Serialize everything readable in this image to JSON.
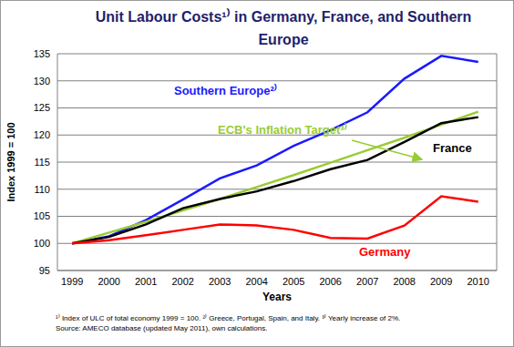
{
  "chart_data": {
    "type": "line",
    "title": "Unit Labour Costs¹⁾ in Germany, France, and Southern\nEurope",
    "x_label": "Years",
    "y_label": "Index 1999 = 100",
    "x": [
      1999,
      2000,
      2001,
      2002,
      2003,
      2004,
      2005,
      2006,
      2007,
      2008,
      2009,
      2010
    ],
    "xlim": [
      1998.6,
      2010.5
    ],
    "xticks": [
      1999,
      2000,
      2001,
      2002,
      2003,
      2004,
      2005,
      2006,
      2007,
      2008,
      2009,
      2010
    ],
    "ylim": [
      95,
      135
    ],
    "yticks": [
      95,
      100,
      105,
      110,
      115,
      120,
      125,
      130,
      135
    ],
    "grid": true,
    "series": [
      {
        "name": "Southern Europe²⁾",
        "color": "#1a1aff",
        "values": [
          100,
          101.3,
          104.3,
          108.1,
          112,
          114.4,
          118,
          120.9,
          124.2,
          130.4,
          134.6,
          133.5
        ]
      },
      {
        "name": "ECB's Inflation Target³⁾",
        "color": "#99cc33",
        "values": [
          100,
          102,
          104,
          106.1,
          108.2,
          110.4,
          112.6,
          114.9,
          117.2,
          119.5,
          121.9,
          124.3
        ]
      },
      {
        "name": "France",
        "color": "#000000",
        "values": [
          100,
          101.2,
          103.5,
          106.5,
          108.2,
          109.6,
          111.5,
          113.7,
          115.4,
          118.7,
          122.2,
          123.3
        ]
      },
      {
        "name": "Germany",
        "color": "#ff0000",
        "values": [
          100,
          100.6,
          101.5,
          102.5,
          103.5,
          103.3,
          102.5,
          101,
          100.9,
          103.3,
          108.7,
          107.7
        ]
      }
    ],
    "footnotes": [
      "¹⁾ Index of ULC of total economy 1999 = 100. ²⁾ Greece, Portugal, Spain, and Italy. ³⁾ Yearly increase of 2%.",
      "Source: AMECO database (updated May 2011), own calculations."
    ]
  }
}
